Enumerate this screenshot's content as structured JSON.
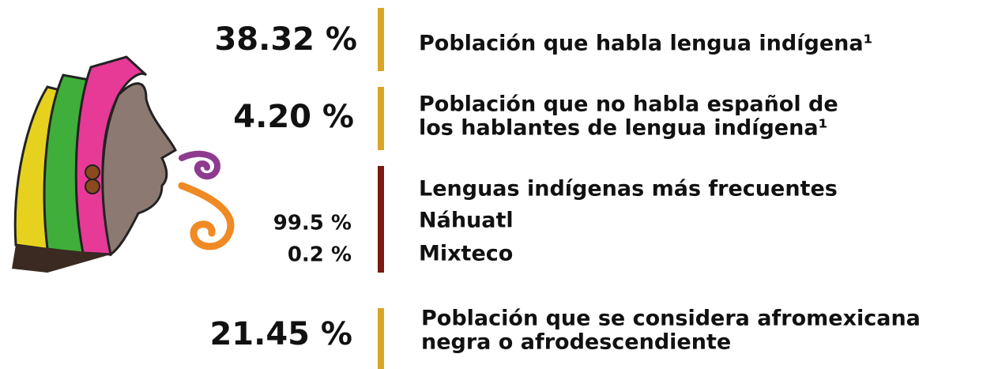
{
  "stats": [
    {
      "value": "38.32 %",
      "label": [
        "Población que habla lengua indígena¹"
      ]
    },
    {
      "value": "4.20 %",
      "label": [
        "Población que no habla español de",
        "los hablantes de lengua indígena¹"
      ]
    },
    {
      "value": "21.45 %",
      "label": [
        "Población que se considera afromexicana",
        "negra o afrodescendiente"
      ]
    }
  ],
  "languages": {
    "title": "Lenguas indígenas más frecuentes",
    "items": [
      {
        "name": "Náhuatl",
        "value": "99.5 %"
      },
      {
        "name": "Mixteco",
        "value": "0.2 %"
      }
    ]
  }
}
